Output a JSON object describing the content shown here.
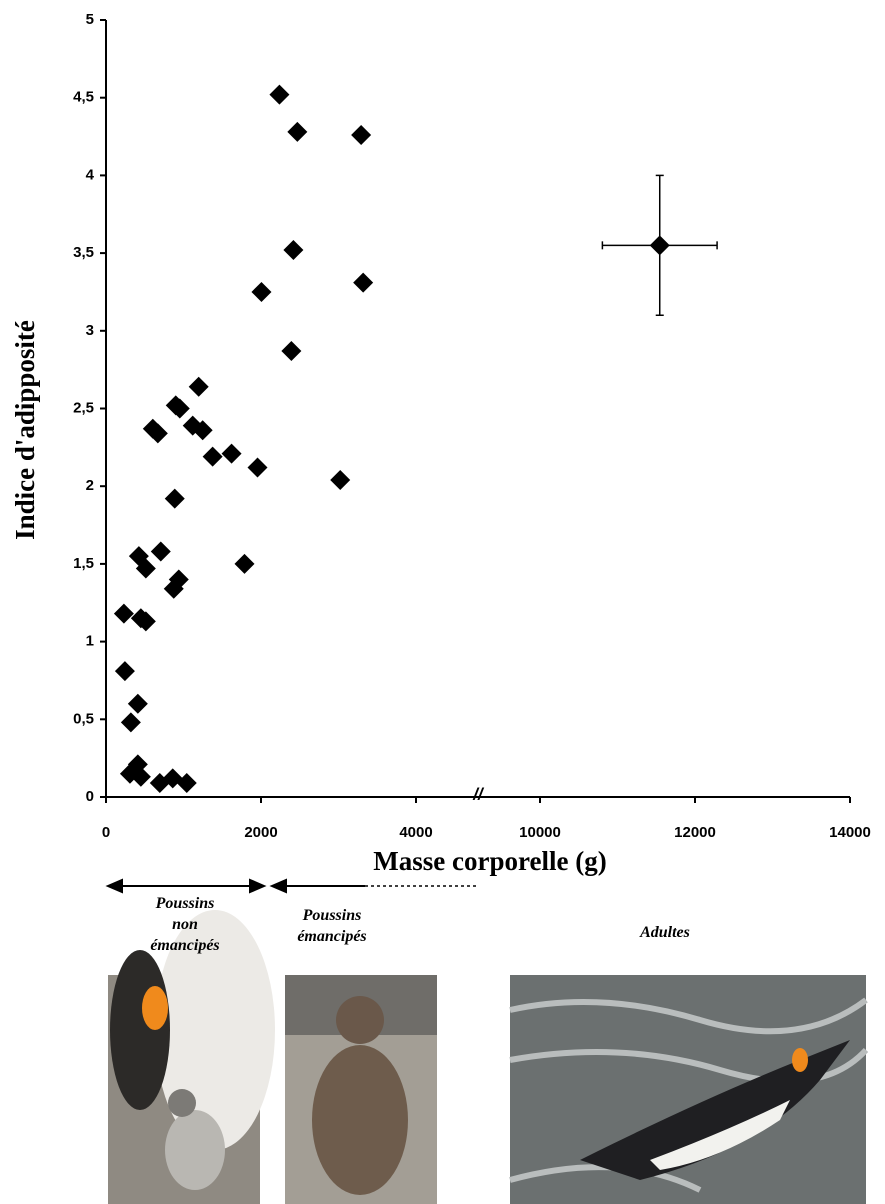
{
  "chart_data": {
    "type": "scatter",
    "x_label": "Masse corporelle (g)",
    "y_label": "Indice d'adipposité",
    "xlim": [
      0,
      14000
    ],
    "x_break": [
      4800,
      9200
    ],
    "xticks": [
      0,
      2000,
      4000,
      10000,
      12000,
      14000
    ],
    "ylim": [
      0,
      5
    ],
    "yticks": [
      0,
      {
        "value": 0.5,
        "label": "0,5"
      },
      1,
      {
        "value": 1.5,
        "label": "1,5"
      },
      2,
      {
        "value": 2.5,
        "label": "2,5"
      },
      3,
      {
        "value": 3.5,
        "label": "3,5"
      },
      4,
      {
        "value": 4.5,
        "label": "4,5"
      },
      5
    ],
    "color": "#000000",
    "points": {
      "x": [
        2238,
        2469,
        3292,
        2418,
        2006,
        3318,
        2392,
        1196,
        900,
        952,
        1119,
        1247,
        604,
        669,
        1376,
        1620,
        1955,
        3022,
        887,
        707,
        424,
        514,
        1787,
        939,
        874,
        231,
        450,
        514,
        244,
        411,
        321,
        411,
        309,
        450,
        694,
        861,
        1042
      ],
      "y": [
        4.52,
        4.28,
        4.26,
        3.52,
        3.25,
        3.31,
        2.87,
        2.64,
        2.52,
        2.5,
        2.39,
        2.36,
        2.37,
        2.34,
        2.19,
        2.21,
        2.12,
        2.04,
        1.92,
        1.58,
        1.55,
        1.47,
        1.5,
        1.4,
        1.34,
        1.18,
        1.15,
        1.13,
        0.81,
        0.6,
        0.48,
        0.21,
        0.15,
        0.13,
        0.09,
        0.12,
        0.09
      ]
    },
    "adult": {
      "x": 11545,
      "y": 3.55,
      "x_err": 740,
      "y_err": 0.45
    },
    "groups": [
      {
        "line1": "Poussins",
        "line2": "non",
        "line3": "émancipés"
      },
      {
        "line1": "Poussins",
        "line2": "émancipés"
      },
      {
        "line1": "Adultes"
      }
    ]
  }
}
